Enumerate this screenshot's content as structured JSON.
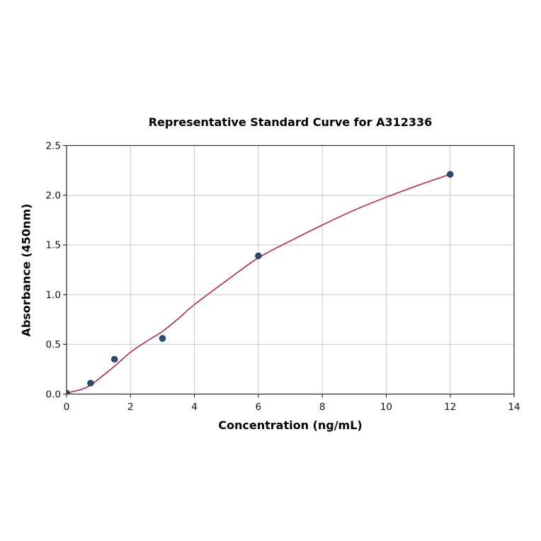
{
  "chart_data": {
    "type": "scatter",
    "title": "Representative Standard Curve for A312336",
    "xlabel": "Concentration (ng/mL)",
    "ylabel": "Absorbance (450nm)",
    "xlim": [
      0,
      14
    ],
    "ylim": [
      0,
      2.5
    ],
    "x_ticks": [
      0,
      2,
      4,
      6,
      8,
      10,
      12,
      14
    ],
    "x_tick_labels": [
      "0",
      "2",
      "4",
      "6",
      "8",
      "10",
      "12",
      "14"
    ],
    "y_ticks": [
      0,
      0.5,
      1.0,
      1.5,
      2.0,
      2.5
    ],
    "y_tick_labels": [
      "0.0",
      "0.5",
      "1.0",
      "1.5",
      "2.0",
      "2.5"
    ],
    "grid": true,
    "legend": false,
    "points": [
      [
        0,
        0.01
      ],
      [
        0.75,
        0.11
      ],
      [
        1.5,
        0.35
      ],
      [
        3,
        0.56
      ],
      [
        6,
        1.39
      ],
      [
        12,
        2.21
      ]
    ],
    "fit_curve": [
      [
        0,
        0.01
      ],
      [
        0.5,
        0.05
      ],
      [
        0.75,
        0.09
      ],
      [
        1,
        0.15
      ],
      [
        1.5,
        0.28
      ],
      [
        2,
        0.42
      ],
      [
        2.5,
        0.53
      ],
      [
        3,
        0.63
      ],
      [
        3.5,
        0.76
      ],
      [
        4,
        0.9
      ],
      [
        5,
        1.14
      ],
      [
        6,
        1.37
      ],
      [
        7,
        1.54
      ],
      [
        8,
        1.7
      ],
      [
        9,
        1.85
      ],
      [
        10,
        1.98
      ],
      [
        11,
        2.1
      ],
      [
        12,
        2.21
      ]
    ],
    "colors": {
      "background": "#ffffff",
      "curve": "#b23455",
      "marker_fill": "#2e4a6e",
      "marker_edge": "#1d3556",
      "grid": "#c6c6c6",
      "spine": "#363636",
      "tick": "#363636",
      "tick_label": "#111111",
      "text": "#000000"
    }
  }
}
